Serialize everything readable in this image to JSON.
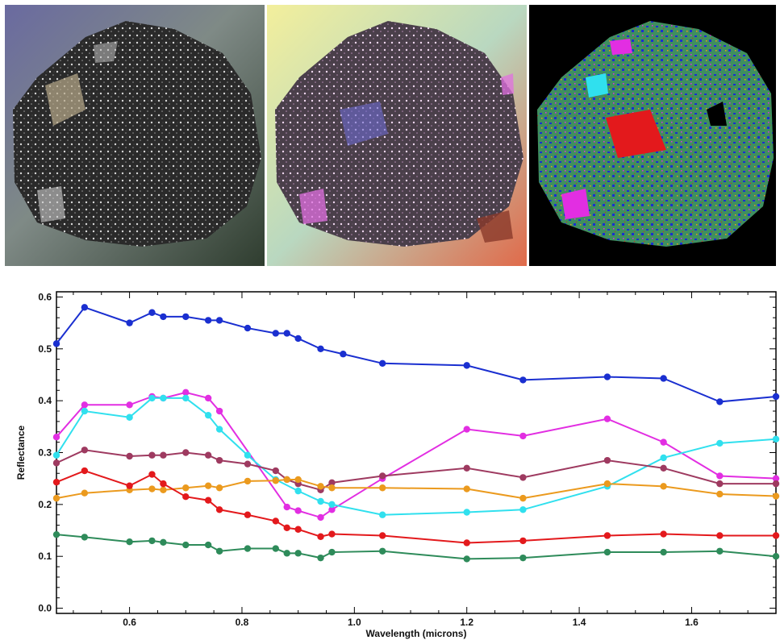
{
  "images": [
    {
      "name": "natural-color-image",
      "description_icon": "rock-sample-photo"
    },
    {
      "name": "enhanced-color-image",
      "description_icon": "rock-sample-photo-enhanced"
    },
    {
      "name": "classification-map-image",
      "description_icon": "rock-sample-classification-map"
    }
  ],
  "chart_data": {
    "type": "line",
    "title": "",
    "xlabel": "Wavelength (microns)",
    "ylabel": "Reflectance",
    "xlim": [
      0.47,
      1.75
    ],
    "ylim": [
      -0.01,
      0.61
    ],
    "xticks": [
      "0.6",
      "0.8",
      "1.0",
      "1.2",
      "1.4",
      "1.6"
    ],
    "xtick_values": [
      0.6,
      0.8,
      1.0,
      1.2,
      1.4,
      1.6
    ],
    "yticks": [
      "0.0",
      "0.1",
      "0.2",
      "0.3",
      "0.4",
      "0.5",
      "0.6"
    ],
    "ytick_values": [
      0.0,
      0.1,
      0.2,
      0.3,
      0.4,
      0.5,
      0.6
    ],
    "grid": false,
    "series": [
      {
        "color": "#1a2fd0",
        "x": [
          0.47,
          0.52,
          0.6,
          0.64,
          0.66,
          0.7,
          0.74,
          0.76,
          0.81,
          0.86,
          0.88,
          0.9,
          0.94,
          0.98,
          1.05,
          1.2,
          1.3,
          1.45,
          1.55,
          1.65,
          1.75
        ],
        "y": [
          0.51,
          0.58,
          0.55,
          0.57,
          0.562,
          0.562,
          0.555,
          0.555,
          0.54,
          0.53,
          0.53,
          0.52,
          0.5,
          0.49,
          0.472,
          0.468,
          0.44,
          0.446,
          0.443,
          0.398,
          0.408
        ]
      },
      {
        "color": "#e22ee2",
        "x": [
          0.47,
          0.52,
          0.6,
          0.64,
          0.66,
          0.7,
          0.74,
          0.76,
          0.88,
          0.9,
          0.94,
          0.96,
          1.05,
          1.2,
          1.3,
          1.45,
          1.55,
          1.65,
          1.75
        ],
        "y": [
          0.33,
          0.392,
          0.392,
          0.408,
          0.405,
          0.416,
          0.405,
          0.38,
          0.195,
          0.188,
          0.175,
          0.19,
          0.25,
          0.345,
          0.332,
          0.365,
          0.32,
          0.255,
          0.25
        ]
      },
      {
        "color": "#30e0ee",
        "x": [
          0.47,
          0.52,
          0.6,
          0.64,
          0.66,
          0.7,
          0.74,
          0.76,
          0.81,
          0.86,
          0.9,
          0.94,
          0.96,
          1.05,
          1.2,
          1.3,
          1.45,
          1.55,
          1.65,
          1.75
        ],
        "y": [
          0.295,
          0.38,
          0.368,
          0.405,
          0.405,
          0.405,
          0.372,
          0.345,
          0.295,
          0.248,
          0.226,
          0.206,
          0.2,
          0.18,
          0.185,
          0.19,
          0.235,
          0.29,
          0.318,
          0.326
        ]
      },
      {
        "color": "#9e3a60",
        "x": [
          0.47,
          0.52,
          0.6,
          0.64,
          0.66,
          0.7,
          0.74,
          0.76,
          0.81,
          0.86,
          0.88,
          0.9,
          0.94,
          0.96,
          1.05,
          1.2,
          1.3,
          1.45,
          1.55,
          1.65,
          1.75
        ],
        "y": [
          0.28,
          0.305,
          0.293,
          0.295,
          0.295,
          0.3,
          0.295,
          0.285,
          0.278,
          0.265,
          0.248,
          0.24,
          0.228,
          0.242,
          0.255,
          0.27,
          0.252,
          0.285,
          0.27,
          0.24,
          0.24
        ]
      },
      {
        "color": "#eb9a1e",
        "x": [
          0.47,
          0.52,
          0.6,
          0.64,
          0.66,
          0.7,
          0.74,
          0.76,
          0.81,
          0.86,
          0.88,
          0.9,
          0.94,
          0.96,
          1.05,
          1.2,
          1.3,
          1.45,
          1.55,
          1.65,
          1.75
        ],
        "y": [
          0.212,
          0.222,
          0.228,
          0.23,
          0.228,
          0.232,
          0.236,
          0.232,
          0.245,
          0.246,
          0.248,
          0.248,
          0.235,
          0.232,
          0.232,
          0.23,
          0.212,
          0.24,
          0.235,
          0.22,
          0.216
        ]
      },
      {
        "color": "#e3191c",
        "x": [
          0.47,
          0.52,
          0.6,
          0.64,
          0.66,
          0.7,
          0.74,
          0.76,
          0.81,
          0.86,
          0.88,
          0.9,
          0.94,
          0.96,
          1.05,
          1.2,
          1.3,
          1.45,
          1.55,
          1.65,
          1.75
        ],
        "y": [
          0.243,
          0.265,
          0.236,
          0.258,
          0.24,
          0.215,
          0.208,
          0.19,
          0.18,
          0.168,
          0.155,
          0.152,
          0.138,
          0.143,
          0.14,
          0.126,
          0.13,
          0.14,
          0.143,
          0.14,
          0.14
        ]
      },
      {
        "color": "#2e8b5a",
        "x": [
          0.47,
          0.52,
          0.6,
          0.64,
          0.66,
          0.7,
          0.74,
          0.76,
          0.81,
          0.86,
          0.88,
          0.9,
          0.94,
          0.96,
          1.05,
          1.2,
          1.3,
          1.45,
          1.55,
          1.65,
          1.75
        ],
        "y": [
          0.142,
          0.137,
          0.128,
          0.13,
          0.127,
          0.122,
          0.122,
          0.11,
          0.115,
          0.115,
          0.106,
          0.106,
          0.097,
          0.108,
          0.11,
          0.095,
          0.097,
          0.108,
          0.108,
          0.11,
          0.1
        ]
      }
    ]
  }
}
